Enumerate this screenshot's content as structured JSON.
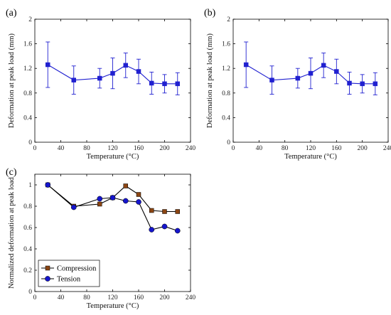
{
  "chart_data": [
    {
      "panel_label": "(a)",
      "type": "line",
      "xlabel": "Temperature (°C)",
      "ylabel": "Deformation at peak load (mm)",
      "xlim": [
        0,
        240
      ],
      "ylim": [
        0,
        2
      ],
      "xticks": [
        0,
        40,
        80,
        120,
        160,
        200,
        240
      ],
      "yticks": [
        0,
        0.4,
        0.8,
        1.2,
        1.6,
        2
      ],
      "ytick_labels": [
        "0",
        "0.4",
        "0.8",
        "1.2",
        "1.6",
        "2"
      ],
      "series": [
        {
          "color": "#2020d0",
          "marker": "square",
          "x": [
            20,
            60,
            100,
            120,
            140,
            160,
            180,
            200,
            220
          ],
          "y": [
            1.26,
            1.01,
            1.04,
            1.12,
            1.25,
            1.15,
            0.96,
            0.95,
            0.95
          ],
          "err": [
            0.37,
            0.23,
            0.16,
            0.25,
            0.2,
            0.2,
            0.18,
            0.15,
            0.18
          ]
        }
      ]
    },
    {
      "panel_label": "(b)",
      "type": "line",
      "xlabel": "Temperature (°C)",
      "ylabel": "Deformation at peak load (mm)",
      "xlim": [
        0,
        240
      ],
      "ylim": [
        0,
        2
      ],
      "xticks": [
        0,
        40,
        80,
        120,
        160,
        200,
        240
      ],
      "yticks": [
        0,
        0.4,
        0.8,
        1.2,
        1.6,
        2
      ],
      "ytick_labels": [
        "0",
        "0.4",
        "0.8",
        "1.2",
        "1.6",
        "2"
      ],
      "series": [
        {
          "color": "#2020d0",
          "marker": "square",
          "x": [
            20,
            60,
            100,
            120,
            140,
            160,
            180,
            200,
            220
          ],
          "y": [
            1.26,
            1.01,
            1.04,
            1.12,
            1.25,
            1.15,
            0.96,
            0.95,
            0.95
          ],
          "err": [
            0.37,
            0.23,
            0.16,
            0.25,
            0.2,
            0.2,
            0.18,
            0.15,
            0.18
          ]
        }
      ]
    },
    {
      "panel_label": "(c)",
      "type": "line",
      "xlabel": "Temperature (°C)",
      "ylabel": "Normalized deformation at peak load",
      "xlim": [
        0,
        240
      ],
      "ylim": [
        0,
        1.1
      ],
      "xticks": [
        0,
        40,
        80,
        120,
        160,
        200,
        240
      ],
      "yticks": [
        0,
        0.2,
        0.4,
        0.6,
        0.8,
        1
      ],
      "ytick_labels": [
        "0",
        "0.2",
        "0.4",
        "0.6",
        "0.8",
        "1"
      ],
      "legend_position": "bottom-left",
      "series": [
        {
          "name": "Compression",
          "color": "#8b4513",
          "marker": "square",
          "x": [
            20,
            60,
            100,
            120,
            140,
            160,
            180,
            200,
            220
          ],
          "y": [
            1.0,
            0.8,
            0.82,
            0.88,
            0.99,
            0.91,
            0.76,
            0.75,
            0.75
          ]
        },
        {
          "name": "Tension",
          "color": "#1515cc",
          "marker": "circle",
          "x": [
            20,
            60,
            100,
            120,
            140,
            160,
            180,
            200,
            220
          ],
          "y": [
            1.0,
            0.79,
            0.87,
            0.88,
            0.85,
            0.84,
            0.58,
            0.61,
            0.57
          ]
        }
      ]
    }
  ]
}
